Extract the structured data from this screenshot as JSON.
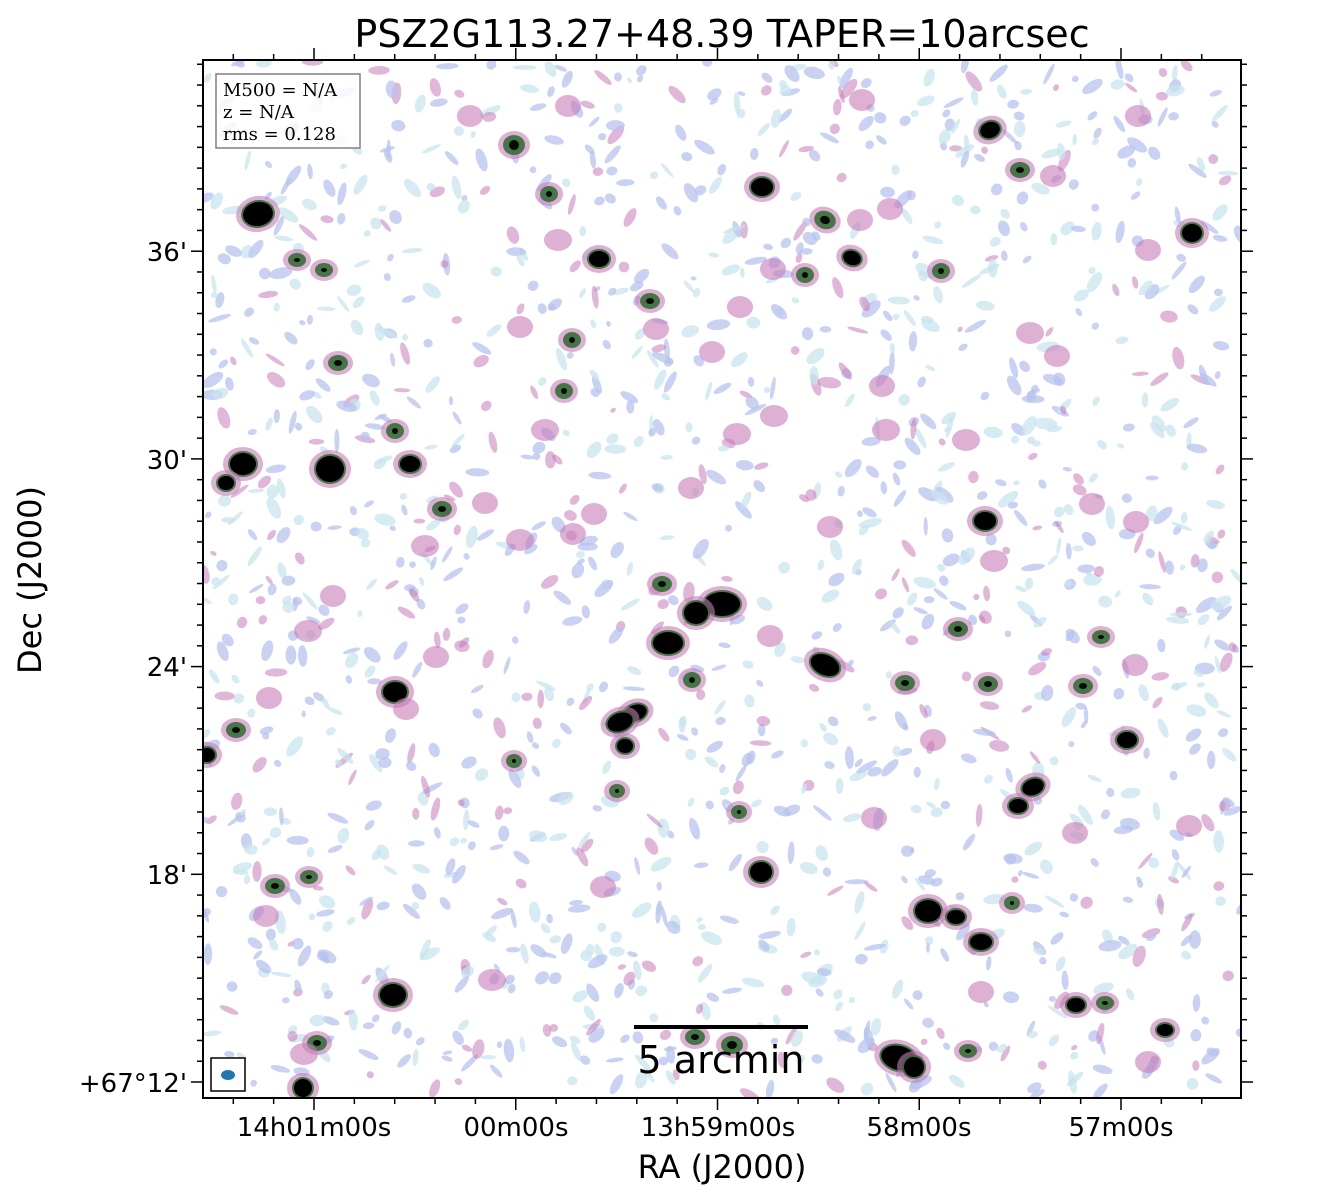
{
  "figure": {
    "title": "PSZ2G113.27+48.39 TAPER=10arcsec",
    "xlabel": "RA (J2000)",
    "ylabel": "Dec (J2000)",
    "ra_ticks": [
      "14h01m00s",
      "00m00s",
      "13h59m00s",
      "58m00s",
      "57m00s"
    ],
    "dec_ticks": [
      "36'",
      "30'",
      "24'",
      "18'",
      "+67°12'"
    ],
    "info": {
      "line1": "M500 = N/A",
      "line2": "z = N/A",
      "line3": "rms = 0.128"
    },
    "scalebar_label": "5 arcmin"
  },
  "colors": {
    "source_core": "#000000",
    "source_ring": "#2e6b2e",
    "halo_magenta": "#c77bb8",
    "faint_blue": "#b7c3ee",
    "faint_cyan": "#c8e4ee",
    "beam": "#1f77b4"
  }
}
